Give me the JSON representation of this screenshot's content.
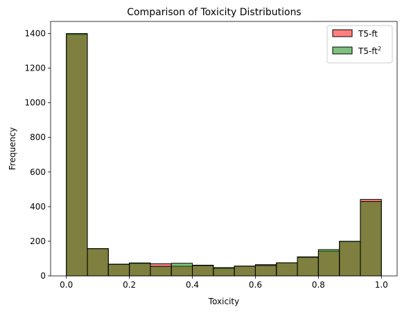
{
  "chart_data": {
    "type": "bar",
    "title": "Comparison of Toxicity Distributions",
    "xlabel": "Toxicity",
    "ylabel": "Frequency",
    "xlim": [
      -0.05,
      1.05
    ],
    "ylim": [
      0,
      1470
    ],
    "xticks": [
      0.0,
      0.2,
      0.4,
      0.6,
      0.8,
      1.0
    ],
    "xtick_labels": [
      "0.0",
      "0.2",
      "0.4",
      "0.6",
      "0.8",
      "1.0"
    ],
    "yticks": [
      0,
      200,
      400,
      600,
      800,
      1000,
      1200,
      1400
    ],
    "ytick_labels": [
      "0",
      "200",
      "400",
      "600",
      "800",
      "1000",
      "1200",
      "1400"
    ],
    "bin_edges": [
      0.0,
      0.0667,
      0.1333,
      0.2,
      0.2667,
      0.3333,
      0.4,
      0.4667,
      0.5333,
      0.6,
      0.6667,
      0.7333,
      0.8,
      0.8667,
      0.9333,
      1.0
    ],
    "series": [
      {
        "name": "T5-ft",
        "color": "#ff0000",
        "alpha": 0.5,
        "values": [
          1395,
          158,
          66,
          72,
          70,
          56,
          62,
          44,
          57,
          65,
          75,
          110,
          143,
          198,
          442
        ]
      },
      {
        "name": "T5-ft",
        "name_superscript": "2",
        "color": "#008000",
        "alpha": 0.5,
        "values": [
          1400,
          157,
          68,
          75,
          55,
          73,
          60,
          48,
          56,
          60,
          76,
          108,
          152,
          200,
          430
        ]
      }
    ],
    "legend_position": "top-right",
    "grid": false
  }
}
